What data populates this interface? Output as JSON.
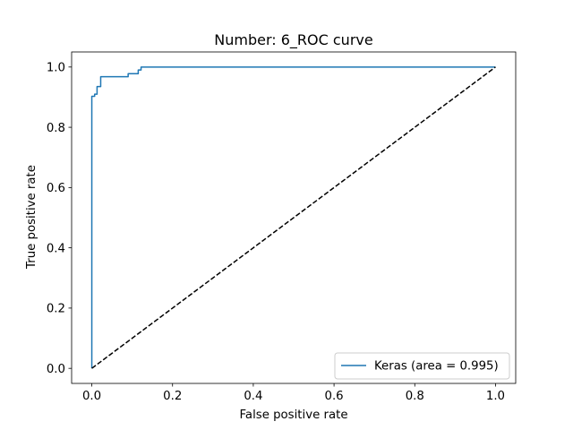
{
  "chart_data": {
    "type": "line",
    "title": "Number:  6_ROC curve",
    "xlabel": "False positive rate",
    "ylabel": "True positive rate",
    "xlim": [
      -0.05,
      1.05
    ],
    "ylim": [
      -0.05,
      1.05
    ],
    "xticks": [
      0.0,
      0.2,
      0.4,
      0.6,
      0.8,
      1.0
    ],
    "xtick_labels": [
      "0.0",
      "0.2",
      "0.4",
      "0.6",
      "0.8",
      "1.0"
    ],
    "yticks": [
      0.0,
      0.2,
      0.4,
      0.6,
      0.8,
      1.0
    ],
    "ytick_labels": [
      "0.0",
      "0.2",
      "0.4",
      "0.6",
      "0.8",
      "1.0"
    ],
    "grid": false,
    "legend_position": "lower-right",
    "series": [
      {
        "name": "Keras (area = 0.995)",
        "color": "#1f77b4",
        "style": "solid",
        "points": [
          [
            0.0,
            0.0
          ],
          [
            0.0,
            0.903
          ],
          [
            0.007,
            0.903
          ],
          [
            0.007,
            0.91
          ],
          [
            0.013,
            0.91
          ],
          [
            0.013,
            0.935
          ],
          [
            0.022,
            0.935
          ],
          [
            0.022,
            0.968
          ],
          [
            0.09,
            0.968
          ],
          [
            0.09,
            0.978
          ],
          [
            0.115,
            0.978
          ],
          [
            0.115,
            0.99
          ],
          [
            0.122,
            0.99
          ],
          [
            0.122,
            1.0
          ],
          [
            1.0,
            1.0
          ]
        ]
      },
      {
        "color": "#000000",
        "style": "dashed",
        "points": [
          [
            0.0,
            0.0
          ],
          [
            1.0,
            1.0
          ]
        ]
      }
    ]
  }
}
